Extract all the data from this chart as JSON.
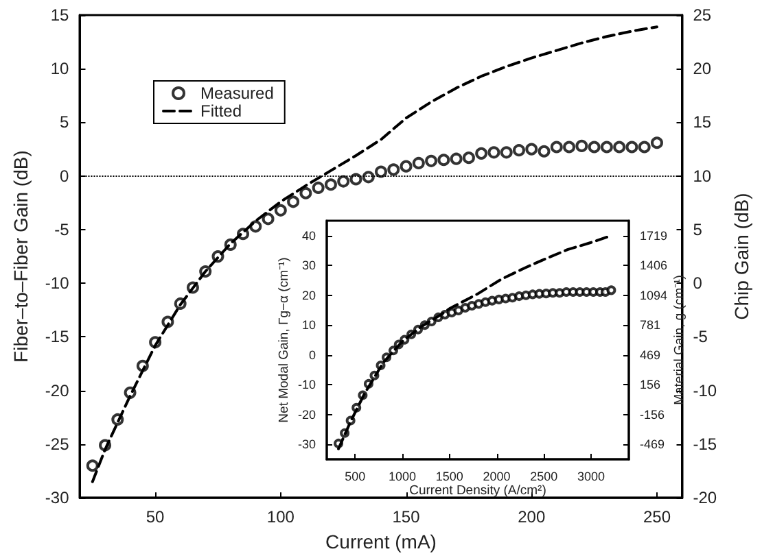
{
  "chart_data": [
    {
      "type": "line",
      "xlabel": "Current (mA)",
      "ylabel": "Fiber–to–Fiber Gain (dB)",
      "y2label": "Chip Gain (dB)",
      "xlim": [
        20,
        260
      ],
      "xticks": [
        50,
        100,
        150,
        200,
        250
      ],
      "ylim": [
        -30,
        15
      ],
      "yticks": [
        -30,
        -25,
        -20,
        -15,
        -10,
        -5,
        0,
        5,
        10,
        15
      ],
      "y2lim": [
        -20,
        25
      ],
      "y2ticks": [
        -20,
        -15,
        -10,
        -5,
        0,
        5,
        10,
        15,
        20,
        25
      ],
      "grid": false,
      "legend": "top left",
      "ref_lines": [
        {
          "axis": "y",
          "value": 0,
          "line_style": "dotted",
          "color": "#000000"
        }
      ],
      "series": [
        {
          "name": "Measured",
          "type": "scatter",
          "marker": "circle",
          "color": "#000000",
          "x": [
            25,
            30,
            35,
            40,
            45,
            50,
            55,
            60,
            65,
            70,
            75,
            80,
            85,
            90,
            95,
            100,
            105,
            110,
            115,
            120,
            125,
            130,
            135,
            140,
            145,
            150,
            155,
            160,
            165,
            170,
            175,
            180,
            185,
            190,
            195,
            200,
            205,
            210,
            215,
            220,
            225,
            230,
            235,
            240,
            245,
            250
          ],
          "values": [
            -27.0,
            -25.1,
            -22.7,
            -20.2,
            -17.7,
            -15.5,
            -13.6,
            -11.9,
            -10.4,
            -8.9,
            -7.5,
            -6.4,
            -5.4,
            -4.7,
            -4.0,
            -3.2,
            -2.4,
            -1.6,
            -1.1,
            -0.8,
            -0.5,
            -0.3,
            -0.1,
            0.4,
            0.6,
            0.9,
            1.2,
            1.4,
            1.5,
            1.6,
            1.7,
            2.1,
            2.2,
            2.2,
            2.4,
            2.5,
            2.3,
            2.7,
            2.7,
            2.8,
            2.7,
            2.7,
            2.7,
            2.7,
            2.7,
            3.1
          ]
        },
        {
          "name": "Fitted",
          "type": "line",
          "marker": "none",
          "line_style": "dashed",
          "color": "#000000",
          "x": [
            25,
            30,
            40,
            50,
            60,
            70,
            80,
            90,
            100,
            110,
            120,
            130,
            140,
            150,
            160,
            170,
            180,
            190,
            200,
            210,
            220,
            230,
            240,
            250
          ],
          "values": [
            -28.5,
            -25.5,
            -20.5,
            -15.8,
            -12.0,
            -8.9,
            -6.3,
            -4.2,
            -2.4,
            -0.9,
            0.5,
            1.9,
            3.4,
            5.4,
            6.9,
            8.2,
            9.3,
            10.2,
            11.0,
            11.7,
            12.4,
            13.0,
            13.5,
            13.9
          ]
        }
      ]
    },
    {
      "type": "line",
      "xlabel": "Current Density (A/cm²)",
      "ylabel": "Net Modal Gain, Γg−α (cm⁻¹)",
      "y2label": "Material Gain, g (cm⁻¹)",
      "xlim": [
        200,
        3400
      ],
      "xticks": [
        500,
        1000,
        1500,
        2000,
        2500,
        3000
      ],
      "ylim": [
        -35,
        45
      ],
      "yticks": [
        -30,
        -20,
        -10,
        0,
        10,
        20,
        30,
        40
      ],
      "y2lim": [
        -625,
        1875
      ],
      "y2ticks": [
        -469,
        -156,
        156,
        469,
        781,
        1094,
        1406,
        1719
      ],
      "grid": false,
      "series": [
        {
          "type": "scatter",
          "marker": "circle",
          "color": "#000000",
          "x": [
            324,
            390,
            452,
            514,
            581,
            643,
            705,
            771,
            833,
            905,
            962,
            1024,
            1095,
            1167,
            1238,
            1310,
            1381,
            1452,
            1524,
            1595,
            1667,
            1738,
            1810,
            1881,
            1952,
            2024,
            2095,
            2167,
            2238,
            2310,
            2381,
            2452,
            2524,
            2595,
            2667,
            2738,
            2810,
            2881,
            2952,
            3024,
            3095,
            3152,
            3214
          ],
          "values": [
            -29.7,
            -26.2,
            -22.0,
            -17.7,
            -13.5,
            -9.7,
            -6.9,
            -3.5,
            -0.8,
            1.5,
            3.5,
            5.1,
            6.9,
            8.5,
            10.0,
            11.2,
            12.6,
            13.5,
            14.2,
            14.9,
            15.8,
            16.5,
            17.1,
            17.7,
            18.2,
            18.6,
            18.9,
            19.2,
            19.7,
            20.0,
            20.3,
            20.5,
            20.6,
            20.8,
            20.8,
            21.1,
            21.1,
            21.1,
            21.1,
            21.1,
            21.1,
            21.1,
            21.7
          ]
        },
        {
          "type": "line",
          "marker": "none",
          "line_style": "dashed",
          "color": "#000000",
          "x": [
            324,
            450,
            600,
            800,
            1000,
            1200,
            1400,
            1500,
            1800,
            2050,
            2300,
            2500,
            2750,
            3000,
            3214
          ],
          "values": [
            -31.5,
            -22.5,
            -13.0,
            -2.5,
            4.5,
            9.5,
            13.3,
            15.5,
            20.5,
            25.4,
            29.2,
            32.0,
            35.3,
            37.7,
            40.0
          ]
        }
      ]
    }
  ]
}
